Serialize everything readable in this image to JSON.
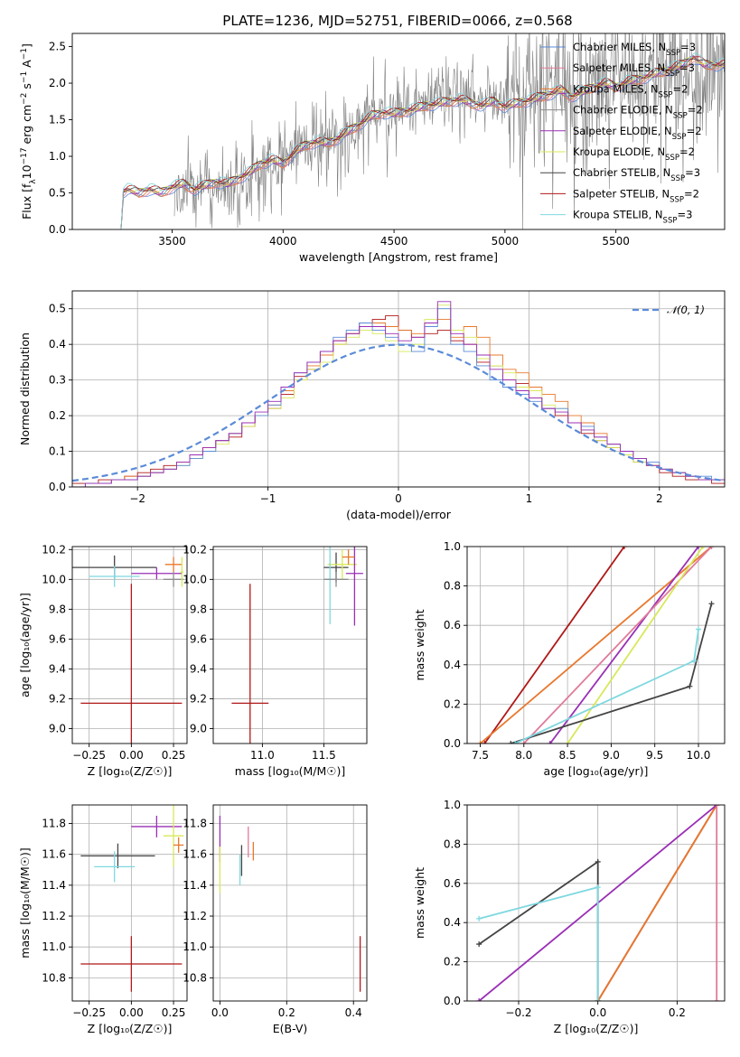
{
  "figure_title": "PLATE=1236, MJD=52751, FIBERID=0066, z=0.568",
  "chart_data": [
    {
      "id": "spectrum",
      "type": "line",
      "title": "PLATE=1236, MJD=52751, FIBERID=0066, z=0.568",
      "xlabel": "wavelength [Angstrom, rest frame]",
      "ylabel": "Flux [f",
      "ylabel_parts": [
        "Flux [f",
        "λ",
        "10",
        "−17",
        " erg cm",
        "−2",
        " s",
        "−1",
        " A",
        "−1",
        "]"
      ],
      "xlim": [
        3050,
        5990
      ],
      "ylim": [
        0,
        2.68
      ],
      "xticks": [
        3500,
        4000,
        4500,
        5000,
        5500
      ],
      "yticks": [
        0.0,
        0.5,
        1.0,
        1.5,
        2.0,
        2.5
      ],
      "grid": false,
      "legend_placement": "top-right",
      "legend": [
        {
          "label": "Chabrier MILES, N",
          "sub": "SSP",
          "suffix": "=3",
          "color": "#5b8bd8"
        },
        {
          "label": "Salpeter MILES, N",
          "sub": "SSP",
          "suffix": "=3",
          "color": "#e07b9a"
        },
        {
          "label": "Kroupa MILES, N",
          "sub": "SSP",
          "suffix": "=2",
          "color": "#e8782d"
        },
        {
          "label": "Chabrier ELODIE, N",
          "sub": "SSP",
          "suffix": "=2",
          "color": "#8e8e8e"
        },
        {
          "label": "Salpeter ELODIE, N",
          "sub": "SSP",
          "suffix": "=2",
          "color": "#9a2fb5"
        },
        {
          "label": "Kroupa ELODIE, N",
          "sub": "SSP",
          "suffix": "=2",
          "color": "#d8e85a"
        },
        {
          "label": "Chabrier STELIB, N",
          "sub": "SSP",
          "suffix": "=3",
          "color": "#444444"
        },
        {
          "label": "Salpeter STELIB, N",
          "sub": "SSP",
          "suffix": "=2",
          "color": "#b01818"
        },
        {
          "label": "Kroupa STELIB, N",
          "sub": "SSP",
          "suffix": "=3",
          "color": "#7fd8e0"
        }
      ],
      "data_curve": {
        "name": "data",
        "color": "#808080",
        "x": [
          3500,
          3600,
          3700,
          3800,
          3900,
          4000,
          4100,
          4200,
          4300,
          4400,
          4500,
          4600,
          4700,
          4800,
          4900,
          5000,
          5100,
          5200,
          5300,
          5400,
          5500,
          5600,
          5700,
          5800
        ],
        "y": [
          0.5,
          0.6,
          0.6,
          0.65,
          0.8,
          1.0,
          1.15,
          1.2,
          1.3,
          1.6,
          1.65,
          1.7,
          1.85,
          1.8,
          1.75,
          1.8,
          1.9,
          2.0,
          1.9,
          2.0,
          2.1,
          2.0,
          2.05,
          2.2
        ]
      },
      "model_curve": {
        "x": [
          3270,
          3300,
          3350,
          3400,
          3450,
          3500,
          3550,
          3600,
          3650,
          3700,
          3750,
          3800,
          3850,
          3900,
          3950,
          4000,
          4050,
          4100,
          4150,
          4200,
          4250,
          4300,
          4350,
          4400,
          4450,
          4500,
          4550,
          4600,
          4650,
          4700,
          4750,
          4800,
          4850,
          4900,
          4950,
          5000,
          5050,
          5100,
          5150,
          5200,
          5250,
          5300,
          5350,
          5400,
          5450,
          5500,
          5550,
          5600,
          5650,
          5700,
          5750,
          5800,
          5850,
          5900
        ],
        "y": [
          0.5,
          0.55,
          0.5,
          0.55,
          0.5,
          0.58,
          0.62,
          0.55,
          0.6,
          0.65,
          0.62,
          0.7,
          0.78,
          0.9,
          0.95,
          0.9,
          1.05,
          1.15,
          1.2,
          1.18,
          1.25,
          1.35,
          1.45,
          1.55,
          1.6,
          1.58,
          1.62,
          1.65,
          1.7,
          1.72,
          1.75,
          1.78,
          1.72,
          1.7,
          1.75,
          1.68,
          1.72,
          1.76,
          1.8,
          1.85,
          1.9,
          1.82,
          1.88,
          1.95,
          2.0,
          1.95,
          2.02,
          2.05,
          2.1,
          2.15,
          2.2,
          2.25,
          2.35,
          2.25
        ]
      }
    },
    {
      "id": "residual-histogram",
      "type": "step",
      "xlabel": "(data-model)/error",
      "ylabel": "Normed distribution",
      "xlim": [
        -2.5,
        2.5
      ],
      "ylim": [
        0,
        0.55
      ],
      "xticks": [
        -2,
        -1,
        0,
        1,
        2
      ],
      "yticks": [
        0.0,
        0.1,
        0.2,
        0.3,
        0.4,
        0.5
      ],
      "grid": true,
      "legend_placement": "top-right",
      "legend": [
        {
          "label": "𝒩(0, 1)",
          "color": "#5b8bd8",
          "style": "dashed"
        }
      ],
      "bin_width": 0.1,
      "bin_start": -2.5,
      "series": [
        {
          "color": "#b01818",
          "values": [
            0.01,
            0.01,
            0.02,
            0.02,
            0.03,
            0.04,
            0.05,
            0.06,
            0.07,
            0.09,
            0.11,
            0.13,
            0.14,
            0.17,
            0.2,
            0.22,
            0.26,
            0.31,
            0.33,
            0.38,
            0.41,
            0.43,
            0.46,
            0.47,
            0.48,
            0.44,
            0.42,
            0.43,
            0.44,
            0.41,
            0.4,
            0.35,
            0.34,
            0.3,
            0.29,
            0.25,
            0.22,
            0.2,
            0.18,
            0.15,
            0.13,
            0.11,
            0.09,
            0.07,
            0.06,
            0.04,
            0.03,
            0.02,
            0.02,
            0.01
          ]
        },
        {
          "color": "#e8782d",
          "values": [
            0.0,
            0.01,
            0.01,
            0.02,
            0.03,
            0.03,
            0.04,
            0.05,
            0.07,
            0.09,
            0.11,
            0.13,
            0.15,
            0.18,
            0.2,
            0.23,
            0.27,
            0.3,
            0.34,
            0.37,
            0.4,
            0.43,
            0.45,
            0.46,
            0.45,
            0.44,
            0.43,
            0.46,
            0.47,
            0.42,
            0.45,
            0.42,
            0.37,
            0.33,
            0.32,
            0.28,
            0.26,
            0.24,
            0.2,
            0.18,
            0.15,
            0.12,
            0.1,
            0.08,
            0.06,
            0.05,
            0.04,
            0.03,
            0.02,
            0.02
          ]
        },
        {
          "color": "#d8e85a",
          "values": [
            0.0,
            0.01,
            0.01,
            0.02,
            0.02,
            0.03,
            0.04,
            0.05,
            0.06,
            0.08,
            0.1,
            0.12,
            0.15,
            0.17,
            0.2,
            0.22,
            0.25,
            0.3,
            0.33,
            0.35,
            0.4,
            0.42,
            0.44,
            0.43,
            0.41,
            0.38,
            0.4,
            0.47,
            0.51,
            0.44,
            0.42,
            0.36,
            0.34,
            0.32,
            0.28,
            0.27,
            0.23,
            0.22,
            0.18,
            0.16,
            0.13,
            0.11,
            0.09,
            0.07,
            0.06,
            0.05,
            0.04,
            0.03,
            0.02,
            0.02
          ]
        },
        {
          "color": "#5b8bd8",
          "values": [
            0.0,
            0.01,
            0.01,
            0.02,
            0.02,
            0.03,
            0.04,
            0.05,
            0.06,
            0.08,
            0.1,
            0.13,
            0.15,
            0.18,
            0.2,
            0.23,
            0.28,
            0.32,
            0.35,
            0.38,
            0.42,
            0.44,
            0.46,
            0.44,
            0.42,
            0.4,
            0.38,
            0.45,
            0.5,
            0.4,
            0.38,
            0.34,
            0.3,
            0.28,
            0.26,
            0.24,
            0.22,
            0.22,
            0.18,
            0.17,
            0.14,
            0.12,
            0.1,
            0.08,
            0.07,
            0.05,
            0.04,
            0.03,
            0.03,
            0.02
          ]
        },
        {
          "color": "#9a2fb5",
          "values": [
            0.0,
            0.01,
            0.01,
            0.02,
            0.02,
            0.03,
            0.04,
            0.05,
            0.07,
            0.09,
            0.11,
            0.13,
            0.15,
            0.18,
            0.21,
            0.24,
            0.28,
            0.32,
            0.35,
            0.38,
            0.41,
            0.43,
            0.45,
            0.45,
            0.43,
            0.41,
            0.42,
            0.46,
            0.52,
            0.43,
            0.4,
            0.37,
            0.33,
            0.3,
            0.27,
            0.25,
            0.22,
            0.21,
            0.18,
            0.16,
            0.14,
            0.12,
            0.1,
            0.08,
            0.06,
            0.05,
            0.04,
            0.03,
            0.02,
            0.02
          ]
        }
      ],
      "gaussian": {
        "mean": 0,
        "sigma": 1
      }
    },
    {
      "id": "age-vs-Z",
      "type": "errorbar",
      "xlabel": "Z [log₁₀(Z/Z☉)]",
      "ylabel": "age  [log₁₀(age/yr)]",
      "xlim": [
        -0.35,
        0.33
      ],
      "ylim": [
        8.9,
        10.22
      ],
      "xticks": [
        -0.25,
        0.0,
        0.25
      ],
      "xticklabels": [
        "−0.25",
        "0.00",
        "0.25"
      ],
      "yticks": [
        9.0,
        9.2,
        9.4,
        9.6,
        9.8,
        10.0,
        10.2
      ],
      "grid": true,
      "points": [
        {
          "color": "#444444",
          "x": -0.1,
          "xerr": 0.25,
          "y": 10.08,
          "yerr": 0.08
        },
        {
          "color": "#7fd8e0",
          "x": -0.1,
          "xerr": 0.15,
          "y": 10.02,
          "yerr": 0.07
        },
        {
          "color": "#9a2fb5",
          "x": 0.15,
          "xerr": 0.15,
          "y": 10.04,
          "yerr": 0.04
        },
        {
          "color": "#e8782d",
          "x": 0.25,
          "xerr": 0.05,
          "y": 10.1,
          "yerr": 0.05
        },
        {
          "color": "#8e8e8e",
          "x": 0.25,
          "xerr": 0.06,
          "y": 10.0,
          "yerr": 0.05
        },
        {
          "color": "#d8e85a",
          "x": 0.3,
          "xerr": 0.01,
          "y": 10.05,
          "yerr": 0.1
        },
        {
          "color": "#b01818",
          "x": 0.0,
          "xerr": 0.3,
          "y": 9.17,
          "yerr": 0.8
        }
      ]
    },
    {
      "id": "age-vs-mass",
      "type": "errorbar",
      "xlabel": "mass [log₁₀(M/M☉)]",
      "ylabel": "",
      "xlim": [
        10.6,
        11.85
      ],
      "ylim": [
        8.9,
        10.22
      ],
      "xticks": [
        11.0,
        11.5
      ],
      "xticklabels": [
        "11.0",
        "11.5"
      ],
      "yticks": [
        9.0,
        9.2,
        9.4,
        9.6,
        9.8,
        10.0,
        10.2
      ],
      "grid": true,
      "points": [
        {
          "color": "#444444",
          "x": 11.6,
          "xerr": 0.1,
          "y": 10.08,
          "yerr": 0.1
        },
        {
          "color": "#d8e85a",
          "x": 11.65,
          "xerr": 0.12,
          "y": 10.1,
          "yerr": 0.1
        },
        {
          "color": "#9a2fb5",
          "x": 11.75,
          "xerr": 0.07,
          "y": 10.04,
          "yerr": 0.35
        },
        {
          "color": "#e8782d",
          "x": 11.7,
          "xerr": 0.05,
          "y": 10.15,
          "yerr": 0.05
        },
        {
          "color": "#7fd8e0",
          "x": 11.55,
          "xerr": 0.05,
          "y": 10.0,
          "yerr": 0.3
        },
        {
          "color": "#8e8e8e",
          "x": 11.6,
          "xerr": 0.1,
          "y": 10.0,
          "yerr": 0.05
        },
        {
          "color": "#b01818",
          "x": 10.9,
          "xerr": 0.15,
          "y": 9.17,
          "yerr": 0.8
        }
      ]
    },
    {
      "id": "cumulative-mass-weight-age",
      "type": "line",
      "xlabel": "age  [log₁₀(age/yr)]",
      "ylabel": "mass weight",
      "xlim": [
        7.35,
        10.3
      ],
      "ylim": [
        0,
        1
      ],
      "xticks": [
        7.5,
        8.0,
        8.5,
        9.0,
        9.5,
        10.0
      ],
      "xticklabels": [
        "7.5",
        "8.0",
        "8.5",
        "9.0",
        "9.5",
        "10.0"
      ],
      "yticks": [
        0.0,
        0.2,
        0.4,
        0.6,
        0.8,
        1.0
      ],
      "grid": true,
      "series": [
        {
          "color": "#b01818",
          "x": [
            7.55,
            9.15
          ],
          "y": [
            0.0,
            1.0
          ]
        },
        {
          "color": "#e8782d",
          "x": [
            7.5,
            10.15
          ],
          "y": [
            0.0,
            1.0
          ]
        },
        {
          "color": "#9a2fb5",
          "x": [
            8.3,
            10.0
          ],
          "y": [
            0.0,
            1.0
          ]
        },
        {
          "color": "#e07b9a",
          "x": [
            8.0,
            10.15
          ],
          "y": [
            0.0,
            1.0
          ]
        },
        {
          "color": "#d8e85a",
          "x": [
            8.5,
            10.05
          ],
          "y": [
            0.0,
            1.0
          ]
        },
        {
          "color": "#444444",
          "x": [
            7.85,
            9.9,
            10.15
          ],
          "y": [
            0.0,
            0.29,
            0.71
          ]
        },
        {
          "color": "#7fd8e0",
          "x": [
            7.9,
            9.95,
            10.0
          ],
          "y": [
            0.0,
            0.42,
            0.58
          ]
        }
      ]
    },
    {
      "id": "mass-vs-Z",
      "type": "errorbar",
      "xlabel": "Z [log₁₀(Z/Z☉)]",
      "ylabel": "mass [log₁₀(M/M☉)]",
      "xlim": [
        -0.35,
        0.33
      ],
      "ylim": [
        10.65,
        11.92
      ],
      "xticks": [
        -0.25,
        0.0,
        0.25
      ],
      "xticklabels": [
        "−0.25",
        "0.00",
        "0.25"
      ],
      "yticks": [
        10.8,
        11.0,
        11.2,
        11.4,
        11.6,
        11.8
      ],
      "grid": true,
      "points": [
        {
          "color": "#444444",
          "x": -0.08,
          "xerr": 0.22,
          "y": 11.59,
          "yerr": 0.08
        },
        {
          "color": "#7fd8e0",
          "x": -0.1,
          "xerr": 0.12,
          "y": 11.52,
          "yerr": 0.1
        },
        {
          "color": "#9a2fb5",
          "x": 0.15,
          "xerr": 0.15,
          "y": 11.78,
          "yerr": 0.07
        },
        {
          "color": "#d8e85a",
          "x": 0.25,
          "xerr": 0.06,
          "y": 11.72,
          "yerr": 0.2
        },
        {
          "color": "#e8782d",
          "x": 0.28,
          "xerr": 0.03,
          "y": 11.66,
          "yerr": 0.05
        },
        {
          "color": "#b01818",
          "x": 0.0,
          "xerr": 0.3,
          "y": 10.89,
          "yerr": 0.18
        }
      ]
    },
    {
      "id": "mass-vs-ebv",
      "type": "errorbar",
      "xlabel": "E(B-V)",
      "ylabel": "",
      "xlim": [
        -0.02,
        0.44
      ],
      "ylim": [
        10.65,
        11.92
      ],
      "xticks": [
        0.0,
        0.2,
        0.4
      ],
      "xticklabels": [
        "0.0",
        "0.2",
        "0.4"
      ],
      "yticks": [
        10.8,
        11.0,
        11.2,
        11.4,
        11.6,
        11.8
      ],
      "grid": true,
      "points": [
        {
          "color": "#9a2fb5",
          "x": 0.0,
          "xerr": 0.0,
          "y": 11.7,
          "yerr": 0.15
        },
        {
          "color": "#d8e85a",
          "x": 0.0,
          "xerr": 0.0,
          "y": 11.5,
          "yerr": 0.15
        },
        {
          "color": "#7fd8e0",
          "x": 0.06,
          "xerr": 0.0,
          "y": 11.5,
          "yerr": 0.1
        },
        {
          "color": "#444444",
          "x": 0.065,
          "xerr": 0.0,
          "y": 11.56,
          "yerr": 0.1
        },
        {
          "color": "#e07b9a",
          "x": 0.085,
          "xerr": 0.0,
          "y": 11.68,
          "yerr": 0.1
        },
        {
          "color": "#e8782d",
          "x": 0.1,
          "xerr": 0.0,
          "y": 11.62,
          "yerr": 0.06
        },
        {
          "color": "#b01818",
          "x": 0.42,
          "xerr": 0.0,
          "y": 10.89,
          "yerr": 0.18
        }
      ]
    },
    {
      "id": "cumulative-mass-weight-Z",
      "type": "line",
      "xlabel": "Z [log₁₀(Z/Z☉)]",
      "ylabel": "mass weight",
      "xlim": [
        -0.33,
        0.32
      ],
      "ylim": [
        0,
        1
      ],
      "xticks": [
        -0.2,
        0.0,
        0.2
      ],
      "xticklabels": [
        "−0.2",
        "0.0",
        "0.2"
      ],
      "yticks": [
        0.0,
        0.2,
        0.4,
        0.6,
        0.8,
        1.0
      ],
      "grid": true,
      "series": [
        {
          "color": "#b01818",
          "x": [
            0.0,
            0.3
          ],
          "y": [
            0.0,
            1.0
          ]
        },
        {
          "color": "#e8782d",
          "x": [
            0.0,
            0.3
          ],
          "y": [
            0.0,
            1.0
          ]
        },
        {
          "color": "#9a2fb5",
          "x": [
            -0.3,
            0.3
          ],
          "y": [
            0.0,
            1.0
          ]
        },
        {
          "color": "#e07b9a",
          "x": [
            0.3,
            0.3
          ],
          "y": [
            0.0,
            1.0
          ]
        },
        {
          "color": "#444444",
          "x": [
            -0.3,
            0.0,
            0.0
          ],
          "y": [
            0.29,
            0.71,
            0.0
          ]
        },
        {
          "color": "#7fd8e0",
          "x": [
            -0.3,
            0.0,
            0.0
          ],
          "y": [
            0.42,
            0.58,
            0.0
          ]
        }
      ]
    }
  ]
}
